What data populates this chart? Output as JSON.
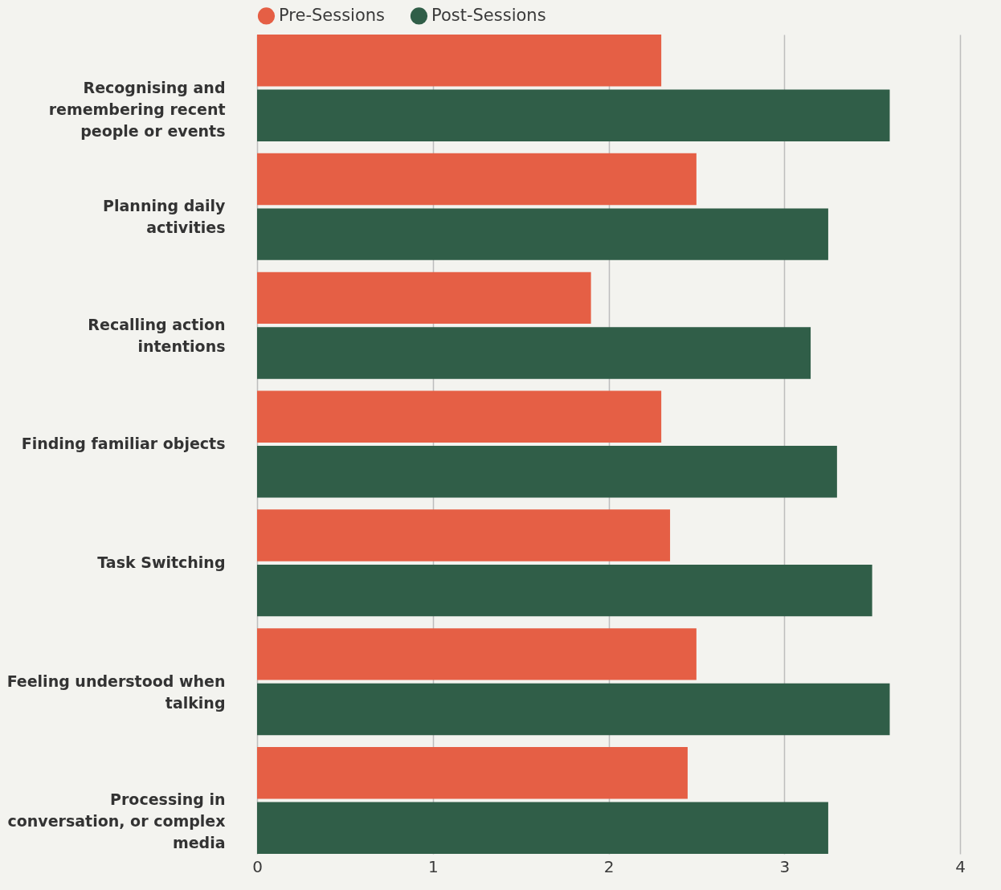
{
  "chart_data": {
    "type": "bar",
    "orientation": "horizontal",
    "categories": [
      "Recognising and remembering recent people or events",
      "Planning daily activities",
      "Recalling action intentions",
      "Finding familiar objects",
      "Task Switching",
      "Feeling understood when talking",
      "Processing in conversation, or complex media"
    ],
    "series": [
      {
        "name": "Pre-Sessions",
        "color": "#e55f45",
        "values": [
          2.3,
          2.5,
          1.9,
          2.3,
          2.35,
          2.5,
          2.45
        ]
      },
      {
        "name": "Post-Sessions",
        "color": "#305e48",
        "values": [
          3.6,
          3.25,
          3.15,
          3.3,
          3.5,
          3.6,
          3.25
        ]
      }
    ],
    "xlim": [
      0,
      4
    ],
    "xticks": [
      0,
      1,
      2,
      3,
      4
    ],
    "grid": "x",
    "legend": "top"
  }
}
